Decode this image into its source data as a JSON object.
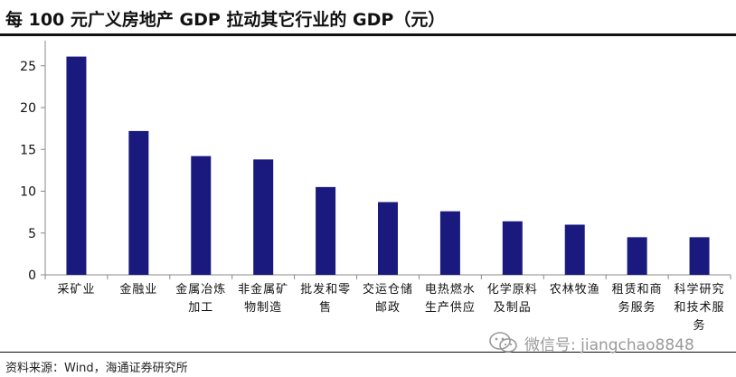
{
  "title": "每 100 元广义房地产 GDP 拉动其它行业的 GDP（元）",
  "source": "资料来源：Wind，海通证券研究所",
  "watermark": {
    "text": "微信号: jiangchao8848",
    "icon": "wechat-icon"
  },
  "colors": {
    "bar": "#1a1a7e",
    "axis": "#888888",
    "text": "#111111"
  },
  "chart_data": {
    "type": "bar",
    "title": "每 100 元广义房地产 GDP 拉动其它行业的 GDP（元）",
    "categories": [
      [
        "采矿业"
      ],
      [
        "金融业"
      ],
      [
        "金属冶炼",
        "加工"
      ],
      [
        "非金属矿",
        "物制造"
      ],
      [
        "批发和零",
        "售"
      ],
      [
        "交运仓储",
        "邮政"
      ],
      [
        "电热燃水",
        "生产供应"
      ],
      [
        "化学原料",
        "及制品"
      ],
      [
        "农林牧渔"
      ],
      [
        "租赁和商",
        "务服务"
      ],
      [
        "科学研究",
        "和技术服",
        "务"
      ]
    ],
    "values": [
      26.1,
      17.2,
      14.2,
      13.8,
      10.5,
      8.7,
      7.6,
      6.4,
      6.0,
      4.5,
      4.5
    ],
    "ylim": [
      0,
      28
    ],
    "yticks": [
      0,
      5,
      10,
      15,
      20,
      25
    ],
    "xlabel": "",
    "ylabel": "",
    "grid": false
  }
}
